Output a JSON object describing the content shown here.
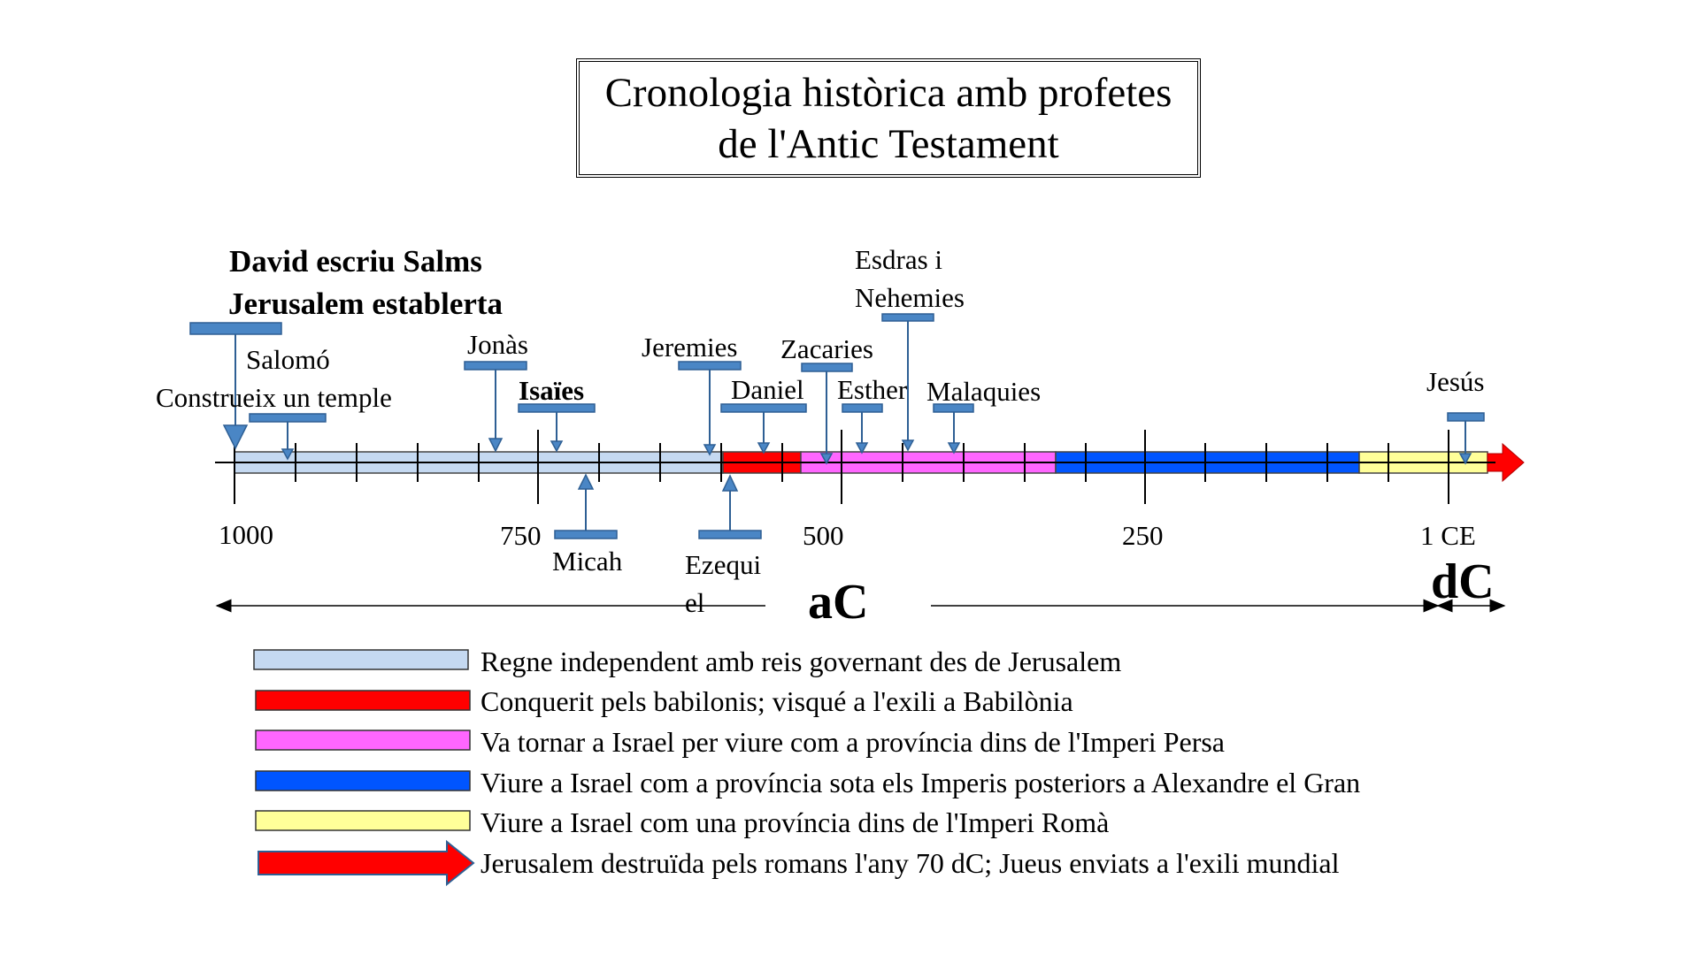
{
  "title": "Cronologia històrica amb profetes\nde l'Antic Testament",
  "events": {
    "david_line1": "David escriu Salms",
    "david_line2": "Jerusalem establerta",
    "salomo_line1": "Salomó",
    "salomo_line2": "Construeix un temple",
    "jonas": "Jonàs",
    "isaies": "Isaïes",
    "micah": "Micah",
    "jeremies": "Jeremies",
    "ezequiel_line1": "Ezequi",
    "ezequiel_line2": "el",
    "daniel": "Daniel",
    "zacaries": "Zacaries",
    "esdras_line1": "Esdras i",
    "esdras_line2": "Nehemies",
    "esther": "Esther",
    "malaquies": "Malaquies",
    "jesus": "Jesús"
  },
  "axis": {
    "tick_1000": "1000",
    "tick_750": "750",
    "tick_500": "500",
    "tick_250": "250",
    "tick_1ce": "1 CE",
    "era_bc": "aC",
    "era_ad": "dC"
  },
  "colors": {
    "independent": "#c5d9f1",
    "babylon": "#ff0000",
    "persia": "#ff66ff",
    "alexander": "#0055ff",
    "rome": "#ffff99",
    "marker": "#4a86c5"
  },
  "legend": [
    {
      "text": "Regne independent amb reis governant des de Jerusalem",
      "color": "#c5d9f1"
    },
    {
      "text": "Conquerit pels babilonis; visqué a l'exili a Babilònia",
      "color": "#ff0000"
    },
    {
      "text": "Va tornar a Israel per viure com a província dins de l'Imperi Persa",
      "color": "#ff66ff"
    },
    {
      "text": "Viure a Israel com a província sota els Imperis posteriors a Alexandre el Gran",
      "color": "#0055ff"
    },
    {
      "text": "Viure a Israel com una província dins de l'Imperi Romà",
      "color": "#ffff99"
    },
    {
      "text": "Jerusalem destruïda pels romans l'any 70 dC; Jueus enviats a l'exili mundial",
      "color": "#ff0000"
    }
  ]
}
